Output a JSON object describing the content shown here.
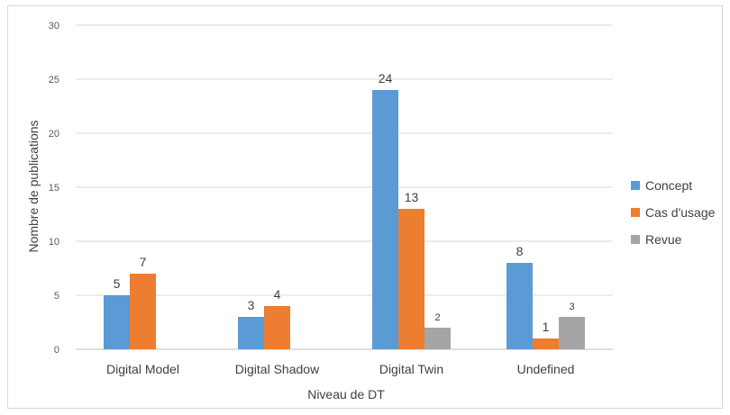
{
  "chart_data": {
    "type": "bar",
    "categories": [
      "Digital Model",
      "Digital Shadow",
      "Digital Twin",
      "Undefined"
    ],
    "series": [
      {
        "name": "Concept",
        "color": "#5B9BD5",
        "values": [
          5,
          3,
          24,
          8
        ]
      },
      {
        "name": "Cas d'usage",
        "color": "#ED7D31",
        "values": [
          7,
          4,
          13,
          1
        ]
      },
      {
        "name": "Revue",
        "color": "#A5A5A5",
        "values": [
          null,
          null,
          2,
          3
        ]
      }
    ],
    "xlabel": "Niveau de DT",
    "ylabel": "Nombre de publications",
    "ylim": [
      0,
      30
    ],
    "yticks": [
      0,
      5,
      10,
      15,
      20,
      25,
      30
    ],
    "grid": true,
    "legend": "right"
  }
}
